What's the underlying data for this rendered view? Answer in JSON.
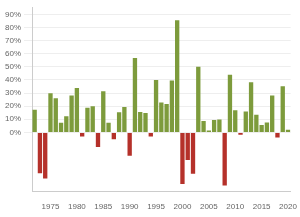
{
  "chart_data": {
    "type": "bar",
    "categories": [
      null,
      null,
      null,
      "1975",
      null,
      null,
      null,
      null,
      "1980",
      null,
      null,
      null,
      null,
      "1985",
      null,
      null,
      null,
      null,
      "1990",
      null,
      null,
      null,
      null,
      "1995",
      null,
      null,
      null,
      null,
      "2000",
      null,
      null,
      null,
      null,
      "2005",
      null,
      null,
      null,
      null,
      "2010",
      null,
      null,
      null,
      null,
      "2015",
      null,
      null,
      null,
      null,
      "2020"
    ],
    "values": [
      17.2,
      -31.1,
      -35.1,
      29.8,
      26.1,
      7.3,
      12.3,
      28.1,
      33.9,
      -3.2,
      18.7,
      19.9,
      -11.2,
      31.4,
      7.4,
      -5.3,
      15.4,
      19.3,
      -17.8,
      56.8,
      15.5,
      14.8,
      -3.2,
      39.9,
      22.7,
      21.6,
      39.6,
      85.6,
      -39.3,
      -21.1,
      -31.5,
      50.0,
      8.6,
      1.4,
      9.5,
      9.8,
      -40.5,
      43.9,
      16.9,
      -1.8,
      15.9,
      38.3,
      13.4,
      5.7,
      7.5,
      28.2,
      -3.9,
      35.2,
      2
    ],
    "colors": [
      "#7d9b3c",
      "#b5312a",
      "#b5312a",
      "#7d9b3c",
      "#7d9b3c",
      "#7d9b3c",
      "#7d9b3c",
      "#7d9b3c",
      "#7d9b3c",
      "#b5312a",
      "#7d9b3c",
      "#7d9b3c",
      "#b5312a",
      "#7d9b3c",
      "#7d9b3c",
      "#b5312a",
      "#7d9b3c",
      "#7d9b3c",
      "#b5312a",
      "#7d9b3c",
      "#7d9b3c",
      "#7d9b3c",
      "#b5312a",
      "#7d9b3c",
      "#7d9b3c",
      "#7d9b3c",
      "#7d9b3c",
      "#7d9b3c",
      "#b5312a",
      "#b5312a",
      "#b5312a",
      "#7d9b3c",
      "#7d9b3c",
      "#7d9b3c",
      "#7d9b3c",
      "#7d9b3c",
      "#b5312a",
      "#7d9b3c",
      "#7d9b3c",
      "#b5312a",
      "#7d9b3c",
      "#7d9b3c",
      "#7d9b3c",
      "#7d9b3c",
      "#7d9b3c",
      "#7d9b3c",
      "#b5312a",
      "#7d9b3c",
      "#7d9b3c"
    ],
    "ylim": [
      -45,
      95
    ],
    "yticks": [
      {
        "value": 0,
        "label": "0%"
      },
      {
        "value": 10,
        "label": "10%"
      },
      {
        "value": 20,
        "label": "20%"
      },
      {
        "value": 30,
        "label": "30%"
      },
      {
        "value": 40,
        "label": "40%"
      },
      {
        "value": 50,
        "label": "50%"
      },
      {
        "value": 60,
        "label": "60%"
      },
      {
        "value": 70,
        "label": "70%"
      },
      {
        "value": 80,
        "label": "80%"
      },
      {
        "value": 90,
        "label": "90%"
      }
    ],
    "grid": true
  }
}
